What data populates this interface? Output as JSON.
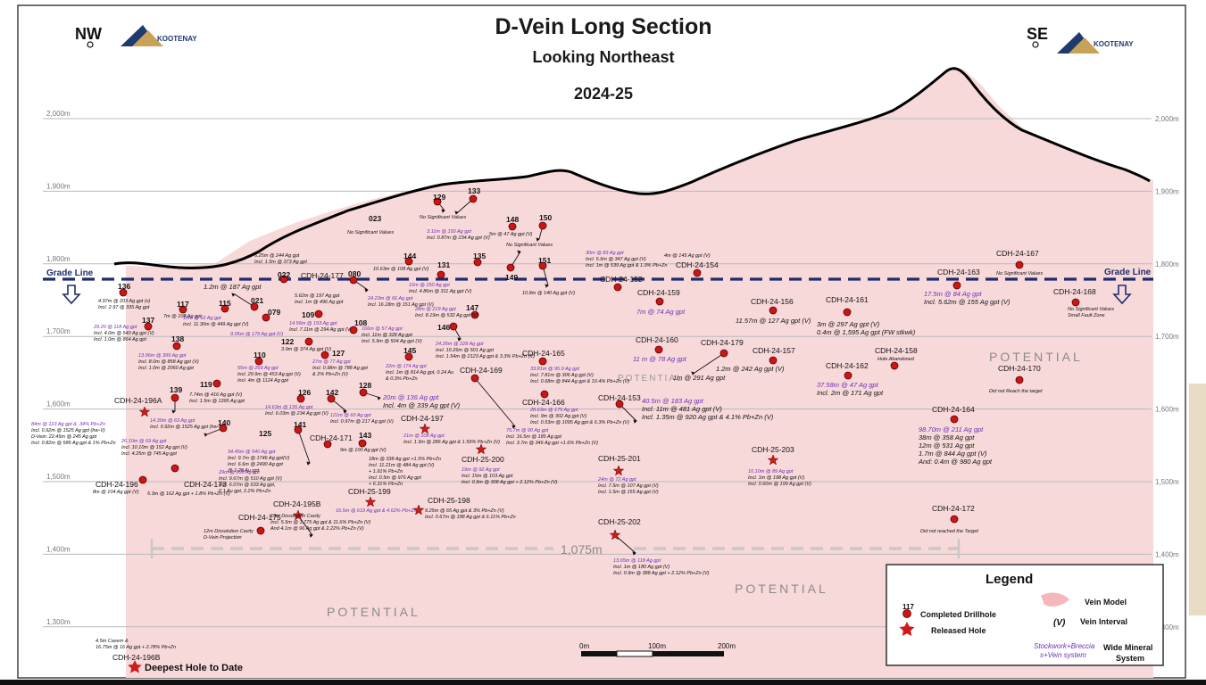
{
  "title": "D-Vein Long Section",
  "subtitle": "Looking Northeast",
  "year": "2024-25",
  "compass": {
    "left": "NW",
    "right": "SE"
  },
  "logo_text": "KOOTENAY",
  "grade_line_label": "Grade Line",
  "elevations": [
    {
      "label": "2,000m",
      "value": 2000
    },
    {
      "label": "1,900m",
      "value": 1900
    },
    {
      "label": "1,800m",
      "value": 1800
    },
    {
      "label": "1,700m",
      "value": 1700
    },
    {
      "label": "1,600m",
      "value": 1600
    },
    {
      "label": "1,500m",
      "value": 1500
    },
    {
      "label": "1,400m",
      "value": 1400
    },
    {
      "label": "1,300m",
      "value": 1300
    }
  ],
  "distance_label": "1,075m",
  "potential_label": "POTENTIAL",
  "vein_model_label": "Vein Model",
  "colors": {
    "vein": "#f8d9da",
    "dot": "#cc1616",
    "grade_line": "#1f2d6e",
    "topo": "#000000"
  },
  "holes": [
    {
      "name": "136",
      "texts": [
        "4.97m @ 203 Ag gpt (v)",
        "Incl. 2.97 @ 335 Ag gpt"
      ],
      "tone": "black"
    },
    {
      "name": "117",
      "texts": [
        "7m @ 108 Ag gpt"
      ],
      "tone": "black"
    },
    {
      "name": "115",
      "texts": [
        "18m @ 62 Ag gpt",
        "Incl. 11.30m @ 449 Ag gpt (V)"
      ],
      "tone": "purple"
    },
    {
      "name": "021",
      "texts": [
        "1.2m @ 187 Ag gpt"
      ],
      "tone": "black"
    },
    {
      "name": "022",
      "texts": [
        "6.25m @ 244 Ag gpt",
        "Incl. 1.5m @ 373 Ag gpt"
      ],
      "tone": "black"
    },
    {
      "name": "079",
      "texts": [
        "9.05m @ 179 Ag gpt (V)"
      ],
      "tone": "purple"
    },
    {
      "name": "137",
      "texts": [
        "29.20 @ 118 Ag gpt",
        "Incl. 4.0m @ 540 Ag gpt (V)",
        "Incl. 1.0m @ 864 Ag gpt"
      ],
      "tone": "purple"
    },
    {
      "name": "138",
      "texts": [
        "13.96m @ 399 Ag gpt",
        "Incl. 8.0m @ 858 Ag gpt (V)",
        "Incl. 1.0m @ 2060 Ag gpt"
      ],
      "tone": "purple"
    },
    {
      "name": "023",
      "texts": [
        "No Significant Values"
      ],
      "tone": "black"
    },
    {
      "name": "129",
      "texts": [
        "No Significant Values"
      ],
      "tone": "black"
    },
    {
      "name": "133",
      "texts": [
        "3.11m @ 150 Ag gpt",
        "Incl. 0.87m @ 234 Ag gpt (V)"
      ],
      "tone": "purple"
    },
    {
      "name": "148",
      "texts": [
        "5m @ 47 Ag gpt (V)"
      ],
      "tone": "black"
    },
    {
      "name": "150",
      "texts": [
        "No Significant Values"
      ],
      "tone": "black"
    },
    {
      "name": "135",
      "texts": [],
      "tone": "black"
    },
    {
      "name": "144",
      "texts": [
        "10.63m @ 108 Ag gpt (V)"
      ],
      "tone": "black"
    },
    {
      "name": "131",
      "texts": [
        "16m @ 150 Ag gpt",
        "Incl. 4.86m @ 311 Ag gpt (V)"
      ],
      "tone": "purple"
    },
    {
      "name": "149",
      "texts": [],
      "tone": "black"
    },
    {
      "name": "151",
      "texts": [
        "10.8m @ 140 Ag gpt (V)"
      ],
      "tone": "black"
    },
    {
      "name": "CDH-24-177",
      "texts": [
        "5.62m @ 197 Ag gpt",
        "Incl. 1m @ 496 Ag gpt"
      ],
      "tone": "black"
    },
    {
      "name": "080",
      "texts": [
        "24.23m @ 66 Ag gpt",
        "Incl. 16.18m @ 151 Ag gpt (V)"
      ],
      "tone": "purple"
    },
    {
      "name": "109",
      "texts": [
        "14.56m @ 193 Ag gpt",
        "Incl. 7.11m @ 294 Ag gpt (V)"
      ],
      "tone": "purple"
    },
    {
      "name": "108",
      "texts": [
        "166m @ 57 Ag gpt",
        "Incl. 11m @ 328 Ag gpt",
        "Incl. 5.9m @ 504 Ag gpt (V)"
      ],
      "tone": "purple"
    },
    {
      "name": "147",
      "texts": [
        "28m @ 219 Ag gpt",
        "Incl. 8.19m @ 532 Ag gpt (V)"
      ],
      "tone": "purple"
    },
    {
      "name": "146",
      "texts": [
        "24.26m @ 228 Ag gpt",
        "Incl. 10.26m @ 501 Ag gpt",
        "Incl. 1.54m @ 2123 Ag gpt & 3.3% Pb+Zn (V)"
      ],
      "tone": "purple"
    },
    {
      "name": "122",
      "texts": [
        "3.9m @ 374 Ag gpt (V)"
      ],
      "tone": "black"
    },
    {
      "name": "127",
      "texts": [
        "27m @ 77 Ag gpt",
        "Incl. 0.98m @ 788 Ag gpt",
        "& 2% Pb+Zn (V)"
      ],
      "tone": "purple"
    },
    {
      "name": "110",
      "texts": [
        "55m @ 269 Ag gpt",
        "Incl. 29.9m @ 453 Ag gpt (V)",
        "Incl. 4m @ 1124 Ag gpt"
      ],
      "tone": "purple"
    },
    {
      "name": "145",
      "texts": [
        "22m @ 174 Ag gpt",
        "Incl. 1m @ 814 Ag gpt, 0.24 Au",
        "& 0.3% Pb+Zn"
      ],
      "tone": "purple"
    },
    {
      "name": "119",
      "texts": [
        "7.74m @ 416 Ag gpt (V)",
        "Incl. 1.5m @ 1395 Ag gpt"
      ],
      "tone": "black"
    },
    {
      "name": "128",
      "texts": [
        "20m @ 136 Ag gpt",
        "Incl. 4m @ 339 Ag gpt (V)"
      ],
      "tone": "purple"
    },
    {
      "name": "126",
      "texts": [
        "14.63m @ 135 Ag gpt",
        "Incl. 6.03m @ 234 Ag gpt (V)"
      ],
      "tone": "purple"
    },
    {
      "name": "142",
      "texts": [
        "121m @ 60 Ag gpt",
        "Incl. 0.97m @ 217 Ag gpt (V)"
      ],
      "tone": "purple"
    },
    {
      "name": "139",
      "texts": [
        "14.30m @ 63 Ag gpt",
        "Incl. 0.92m @ 1525 Ag gpt (hw-V)"
      ],
      "tone": "purple"
    },
    {
      "name": "CDH-24-196A",
      "texts": [
        "84m @ 123 Ag gpt & .34% Pb+Zn",
        "Incl. 0.92m @ 1525 Ag gpt (hw-V)",
        "D-Vein: 22.45m @ 245 Ag gpt",
        "Incl. 0.82m @ 585 Ag gpt & 1% Pb+Zn"
      ],
      "tone": "purple"
    },
    {
      "name": "140",
      "texts": [
        "26.10m @ 69 Ag gpt",
        "Incl. 10.10m @ 152 Ag gpt (V)",
        "Incl. 4.25m @ 745 Ag gpt"
      ],
      "tone": "purple"
    },
    {
      "name": "125",
      "texts": [
        "34.45m @ 540 Ag gpt",
        "Incl. 9.7m @ 1746 Ag gpt(V)",
        "Incl. 6.6m @ 2490 Ag gpt",
        "@ 1.28 Au gpt"
      ],
      "tone": "purple"
    },
    {
      "name": "141",
      "texts": [
        "29m @ 208 Ag gpt",
        "Incl. 9.67m @ 510 Ag gpt (V)",
        "Incl. 6.07m @ 633 Ag gpt,",
        "0.1 Au gpt, 2.2% Pb+Zn"
      ],
      "tone": "purple"
    },
    {
      "name": "CDH-24-171",
      "texts": [
        "9m @ 100 Ag gpt (V)"
      ],
      "tone": "black"
    },
    {
      "name": "143",
      "texts": [
        "18m @ 338 Ag gpt +1.5% Pb+Zn",
        "Incl. 11.21m @ 484 Ag gpt (V)",
        "+ 1.91% Pb+Zn",
        "Incl. 0.5m @ 976 Ag gpt",
        "+ 6.31% Pb+Zn"
      ],
      "tone": "black"
    },
    {
      "name": "CDH-24-197",
      "texts": [
        "21m @ 108 Ag gpt",
        "Incl. 1.3m @ 286 Ag gpt & 1.59% Pb+Zn (V)"
      ],
      "tone": "purple"
    },
    {
      "name": "CDH-24-169",
      "texts": [
        "75.7m @ 90 Ag gpt",
        "Incl. 16.5m @ 185 Ag gpt",
        "Incl. 3.7m @ 346 Ag gpt +1.6% Pb+Zn (V)"
      ],
      "tone": "purple"
    },
    {
      "name": "CDH-24-165",
      "texts": [
        "33.81m @ 95.9 Ag gpt",
        "Incl. 7.81m @ 306 Ag gpt (V)",
        "Incl. 0.68m @ 844 Ag gpt & 10.4% Pb+Zn (V)"
      ],
      "tone": "purple"
    },
    {
      "name": "CDH-24-166",
      "texts": [
        "28.63m @ 175 Ag gpt",
        "Incl. 9m @ 302 Ag gpt (V)",
        "Incl. 0.53m @ 1095 Ag gpt & 6.3% Pb+Zn (V)"
      ],
      "tone": "purple"
    },
    {
      "name": "CDH-25-200",
      "texts": [
        "19m @ 92 Ag gpt",
        "Incl. 15m @ 103 Ag gpt",
        "Incl. 0.9m @ 308 Ag gpt + 2.12% Pb+Zn (V)"
      ],
      "tone": "purple"
    },
    {
      "name": "CDH-24-152",
      "texts": [
        "30m @ 83 Ag gpt",
        "Incl. 5.6m @ 347 Ag gpt (V)",
        "Incl. 1m @ 539 Ag gpt & 1.9% Pb+Zn"
      ],
      "tone": "purple"
    },
    {
      "name": "CDH-24-154",
      "texts": [
        "4m @ 145 Ag gpt (V)"
      ],
      "tone": "black"
    },
    {
      "name": "CDH-24-159",
      "texts": [
        "7m @ 74 Ag gpt"
      ],
      "tone": "purple"
    },
    {
      "name": "CDH-24-160",
      "texts": [
        "11 m @ 78 Ag gpt"
      ],
      "tone": "purple"
    },
    {
      "name": "CDH-24-179",
      "texts": [
        "1m @ 291 Ag gpt"
      ],
      "tone": "black"
    },
    {
      "name": "CDH-24-153",
      "texts": [
        "40.5m @ 183 Ag gpt",
        "Incl. 11m @ 481 Ag gpt (V)",
        "Incl. 1.35m @ 920 Ag gpt & 4.1% Pb+Zn (V)"
      ],
      "tone": "purple"
    },
    {
      "name": "CDH-25-201",
      "texts": [
        "24m @ 72 Ag gpt",
        "Incl. 7.5m @ 107 Ag gpt (V)",
        "Incl. 1.5m @ 155 Ag gpt (V)"
      ],
      "tone": "purple"
    },
    {
      "name": "CDH-25-202",
      "texts": [
        "13.65m @ 118 Ag gpt",
        "Incl. 1m @ 180 Ag gpt (V)",
        "Incl. 0.9m @ 388 Ag gpt + 2.12% Pb+Zn (V)"
      ],
      "tone": "purple"
    },
    {
      "name": "CDH-24-156",
      "texts": [
        "11.57m @ 127 Ag gpt (V)"
      ],
      "tone": "black"
    },
    {
      "name": "CDH-24-161",
      "texts": [
        "3m @ 297 Ag gpt (V)",
        "0.4m @ 1,595 Ag gpt (FW stkwk)"
      ],
      "tone": "black"
    },
    {
      "name": "CDH-24-157",
      "texts": [
        "1.2m @ 242 Ag gpt (V)"
      ],
      "tone": "black"
    },
    {
      "name": "CDH-24-162",
      "texts": [
        "37.58m @ 47 Ag gpt",
        "Incl. 2m @ 171 Ag gpt"
      ],
      "tone": "purple"
    },
    {
      "name": "CDH-24-158",
      "texts": [
        "Hole Abandoned"
      ],
      "tone": "black"
    },
    {
      "name": "CDH-25-203",
      "texts": [
        "10.10m @ 89 Ag gpt",
        "Incl. 1m @ 198 Ag gpt (V)",
        "Incl. 0.60m @ 199 Ag gpt (V)"
      ],
      "tone": "purple"
    },
    {
      "name": "CDH-24-163",
      "texts": [
        "17.5m @ 84 Ag gpt",
        "Incl. 5.62m @ 155 Ag gpt (V)"
      ],
      "tone": "purple"
    },
    {
      "name": "CDH-24-167",
      "texts": [
        "No Significant Values"
      ],
      "tone": "black"
    },
    {
      "name": "CDH-24-168",
      "texts": [
        "No Significant Values",
        "Small Fault Zone"
      ],
      "tone": "black"
    },
    {
      "name": "CDH-24-170",
      "texts": [
        "Did not Reach the target"
      ],
      "tone": "black"
    },
    {
      "name": "CDH-24-164",
      "texts": [
        "98.70m @ 211 Ag gpt",
        "38m @ 358 Ag gpt",
        "12m @ 531 Ag gpt",
        "1.7m @ 844 Ag gpt (V)",
        "And: 0.4m @ 980 Ag gpt"
      ],
      "tone": "purple"
    },
    {
      "name": "CDH-24-172",
      "texts": [
        "Did not reached the Target"
      ],
      "tone": "black"
    },
    {
      "name": "CDH-24-196",
      "texts": [
        "8m @ 104 Ag gpt (V)"
      ],
      "tone": "black"
    },
    {
      "name": "CDH-24-173",
      "texts": [
        "5.3m @ 162 Ag gpt + 1.8% Pb+Zn (V)"
      ],
      "tone": "black"
    },
    {
      "name": "CDH-25-199",
      "texts": [
        "16.5m @ 619 Ag gpt & 4.62% Pb+Zn"
      ],
      "tone": "purple"
    },
    {
      "name": "CDH-24-195B",
      "texts": [
        "13m Dissolution Cavity",
        "Incl. 5.5m @ 1,775 Ag gpt & 11.6% Pb+Zn (V)",
        "And 4.1m @ 96 Ag gpt & 2.22% Pb+Zn (V)"
      ],
      "tone": "black"
    },
    {
      "name": "CDH-25-198",
      "texts": [
        "9.25m @ 65 Ag gpt & 3% Pb+Zn (V)",
        "Incl. 0.67m @ 188 Ag gpt & 6.11% Pb+Zn"
      ],
      "tone": "black"
    },
    {
      "name": "CDH-24-175",
      "texts": [
        "12m Dissolution Cavity",
        "D-Vein Projection"
      ],
      "tone": "black"
    },
    {
      "name": "CDH-24-196B",
      "texts": [
        "4.5m Cavern &",
        "16.75m @ 16 Ag gpt + 2.78% Pb+Zn"
      ],
      "tone": "black"
    }
  ],
  "deepest_hole_label": "Deepest Hole to Date",
  "legend": {
    "title": "Legend",
    "sample_number": "117",
    "completed_label": "Completed Drillhole",
    "released_label": "Released Hole",
    "vein_model": "Vein Model",
    "vein_interval_symbol": "(V)",
    "vein_interval_label": "Vein Interval",
    "stockwork_label_1": "Stockwork+Breccia",
    "stockwork_label_2": "s+Vein system",
    "wide_label_1": "Wide Mineral",
    "wide_label_2": "System",
    "scale_ticks": [
      "0m",
      "100m",
      "200m"
    ]
  }
}
